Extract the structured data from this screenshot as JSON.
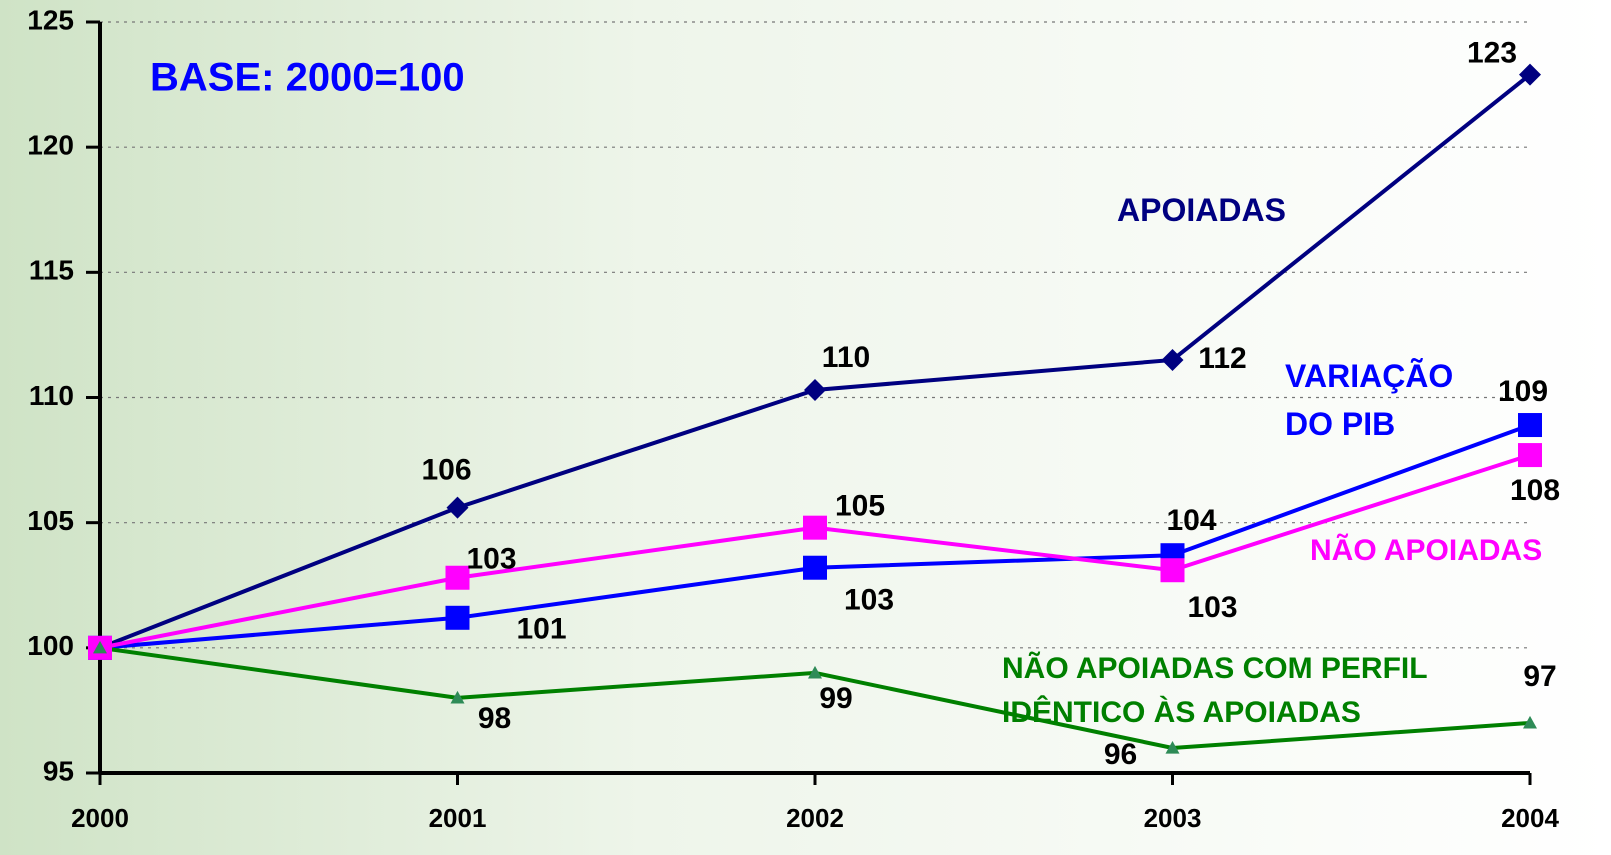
{
  "chart_data": {
    "type": "line",
    "annotations": [
      "BASE: 2000=100"
    ],
    "categories": [
      "2000",
      "2001",
      "2002",
      "2003",
      "2004"
    ],
    "ylim": [
      95,
      125
    ],
    "yticks": [
      95,
      100,
      105,
      110,
      115,
      120,
      125
    ],
    "grid": true,
    "series": [
      {
        "name": "APOIADAS",
        "color": "#000080",
        "marker": "diamond",
        "values": [
          100,
          105.6,
          110.3,
          111.5,
          122.9
        ],
        "value_labels": [
          null,
          "106",
          "110",
          "112",
          "123"
        ]
      },
      {
        "name": "VARIAÇÃO DO PIB",
        "color": "#0000ff",
        "marker": "square",
        "values": [
          100,
          101.2,
          103.2,
          103.7,
          108.9
        ],
        "value_labels": [
          null,
          "101",
          "103",
          "104",
          "109"
        ]
      },
      {
        "name": "NÃO APOIADAS",
        "color": "#ff00ff",
        "marker": "square",
        "values": [
          100,
          102.8,
          104.8,
          103.1,
          107.7
        ],
        "value_labels": [
          null,
          "103",
          "105",
          "103",
          "108"
        ]
      },
      {
        "name": "NÃO APOIADAS COM PERFIL IDÊNTICO ÀS APOIADAS",
        "color": "#008000",
        "marker": "triangle",
        "values": [
          100,
          98,
          99,
          96,
          97
        ],
        "value_labels": [
          null,
          "98",
          "99",
          "96",
          "97"
        ]
      }
    ]
  }
}
